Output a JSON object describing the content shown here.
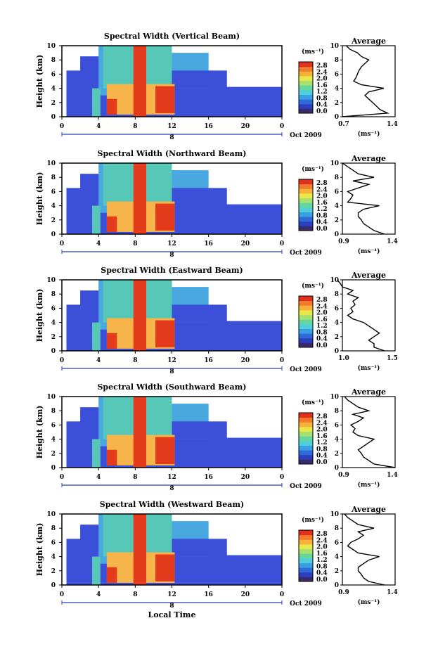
{
  "figure": {
    "xlabel": "Local Time",
    "colorbar_unit": "(ms⁻¹)",
    "colorbar_ticks": [
      "2.8",
      "2.4",
      "2.0",
      "1.6",
      "1.2",
      "0.8",
      "0.4",
      "0.0"
    ],
    "colorbar_colors": [
      "#3a2a6a",
      "#2b3fbf",
      "#2f6bd6",
      "#3aa0e6",
      "#4fd0d8",
      "#66d6a0",
      "#a8e070",
      "#e8e848",
      "#f6b13a",
      "#f47a2c",
      "#e0301e"
    ],
    "heatmap_colors": {
      "low": "#3b4fd8",
      "mid": "#4aa8e0",
      "teal": "#57c8b8",
      "high": "#f6b44a",
      "very_high": "#e43b1c"
    },
    "x_axis_ticks": [
      "0",
      "4",
      "8",
      "12",
      "16",
      "20",
      "0"
    ],
    "x_secondary_label": "8",
    "date_label": "Oct 2009",
    "average_title": "Average",
    "average_xlabel": "(ms⁻¹)"
  },
  "chart_data": [
    {
      "type": "heatmap",
      "title": "Spectral Width (Vertical Beam)",
      "ylabel": "Height (km)",
      "y_ticks": [
        "0",
        "2",
        "4",
        "6",
        "8",
        "10"
      ],
      "xlim": [
        0,
        24
      ],
      "ylim": [
        0,
        10
      ],
      "colorbar_range": [
        0.0,
        2.8
      ],
      "profile": {
        "title": "Average",
        "xlim": [
          0.7,
          1.4
        ],
        "x_ticks": [
          "0.7",
          "1.4"
        ],
        "heights": [
          0,
          0.5,
          1,
          1.5,
          2,
          2.5,
          3,
          3.5,
          4,
          4.5,
          5,
          5.5,
          6,
          6.5,
          7,
          7.5,
          8,
          8.5,
          9,
          9.5,
          10
        ],
        "values": [
          0.7,
          1.3,
          1.2,
          1.15,
          1.1,
          1.05,
          1.0,
          1.05,
          1.25,
          0.95,
          0.85,
          0.88,
          0.9,
          0.92,
          0.95,
          1.0,
          1.05,
          0.95,
          0.9,
          0.8,
          0.75
        ]
      }
    },
    {
      "type": "heatmap",
      "title": "Spectral Width (Northward Beam)",
      "ylabel": "Height (km)",
      "y_ticks": [
        "0",
        "2",
        "4",
        "6",
        "8",
        "10"
      ],
      "xlim": [
        0,
        24
      ],
      "ylim": [
        0,
        10
      ],
      "colorbar_range": [
        0.0,
        2.8
      ],
      "profile": {
        "title": "Average",
        "xlim": [
          0.9,
          1.4
        ],
        "x_ticks": [
          "0.9",
          "1.4"
        ],
        "heights": [
          0,
          0.5,
          1,
          1.5,
          2,
          2.5,
          3,
          3.5,
          4,
          4.5,
          5,
          5.5,
          6,
          6.5,
          7,
          7.5,
          8,
          8.5,
          9,
          9.5,
          10
        ],
        "values": [
          1.3,
          1.2,
          1.15,
          1.1,
          1.08,
          1.05,
          1.05,
          1.1,
          1.25,
          0.95,
          0.98,
          1.0,
          0.95,
          1.05,
          1.15,
          1.0,
          1.2,
          1.05,
          1.0,
          0.95,
          0.9
        ]
      }
    },
    {
      "type": "heatmap",
      "title": "Spectral Width (Eastward Beam)",
      "ylabel": "Height (km)",
      "y_ticks": [
        "0",
        "2",
        "4",
        "6",
        "8",
        "10"
      ],
      "xlim": [
        0,
        24
      ],
      "ylim": [
        0,
        10
      ],
      "colorbar_range": [
        0.0,
        2.8
      ],
      "profile": {
        "title": "Average",
        "xlim": [
          1.0,
          1.5
        ],
        "x_ticks": [
          "1.0",
          "1.5"
        ],
        "heights": [
          0,
          0.5,
          1,
          1.5,
          2,
          2.5,
          3,
          3.5,
          4,
          4.5,
          5,
          5.5,
          6,
          6.5,
          7,
          7.5,
          8,
          8.5,
          9,
          9.5,
          10
        ],
        "values": [
          1.4,
          1.3,
          1.3,
          1.25,
          1.3,
          1.35,
          1.3,
          1.25,
          1.2,
          1.1,
          1.05,
          1.1,
          1.08,
          1.12,
          1.1,
          1.15,
          1.05,
          1.1,
          1.0,
          0.98,
          0.95
        ]
      }
    },
    {
      "type": "heatmap",
      "title": "Spectral Width (Southward Beam)",
      "ylabel": "Height (km)",
      "y_ticks": [
        "0",
        "2",
        "4",
        "6",
        "8",
        "10"
      ],
      "xlim": [
        0,
        24
      ],
      "ylim": [
        0,
        10
      ],
      "colorbar_range": [
        0.0,
        2.8
      ],
      "profile": {
        "title": "Average",
        "xlim": [
          0.9,
          1.4
        ],
        "x_ticks": [
          "0.9",
          "1.4"
        ],
        "heights": [
          0,
          0.5,
          1,
          1.5,
          2,
          2.5,
          3,
          3.5,
          4,
          4.5,
          5,
          5.5,
          6,
          6.5,
          7,
          7.5,
          8,
          8.5,
          9,
          9.5,
          10
        ],
        "values": [
          1.4,
          1.2,
          1.15,
          1.1,
          1.08,
          1.05,
          1.1,
          1.15,
          1.2,
          1.05,
          1.0,
          1.02,
          0.98,
          1.05,
          1.1,
          1.0,
          1.15,
          1.05,
          1.0,
          0.95,
          0.92
        ]
      }
    },
    {
      "type": "heatmap",
      "title": "Spectral Width (Westward Beam)",
      "ylabel": "Height (km)",
      "y_ticks": [
        "0",
        "2",
        "4",
        "6",
        "8",
        "10"
      ],
      "xlim": [
        0,
        24
      ],
      "ylim": [
        0,
        10
      ],
      "colorbar_range": [
        0.0,
        2.8
      ],
      "profile": {
        "title": "Average",
        "xlim": [
          0.9,
          1.4
        ],
        "x_ticks": [
          "0.9",
          "1.4"
        ],
        "heights": [
          0,
          0.5,
          1,
          1.5,
          2,
          2.5,
          3,
          3.5,
          4,
          4.5,
          5,
          5.5,
          6,
          6.5,
          7,
          7.5,
          8,
          8.5,
          9,
          9.5,
          10
        ],
        "values": [
          1.3,
          1.15,
          1.1,
          1.08,
          1.05,
          1.05,
          1.1,
          1.15,
          1.25,
          1.05,
          1.0,
          0.95,
          0.98,
          1.05,
          1.1,
          1.05,
          1.2,
          1.05,
          1.0,
          0.95,
          0.92
        ]
      }
    }
  ]
}
